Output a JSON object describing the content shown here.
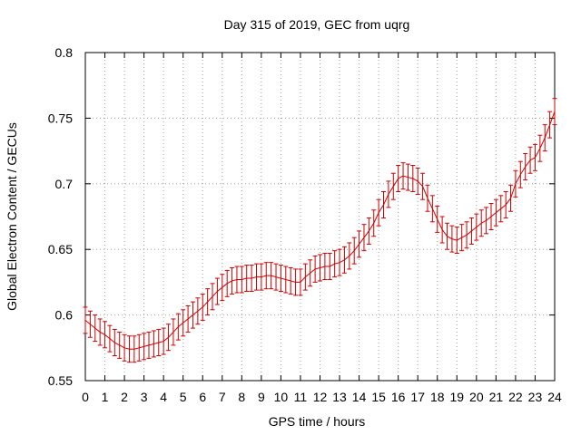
{
  "chart_data": {
    "type": "line",
    "title": "Day 315 of 2019, GEC from uqrg",
    "xlabel": "GPS time / hours",
    "ylabel": "Global Electron Content / GECUs",
    "xlim": [
      0,
      24
    ],
    "ylim": [
      0.55,
      0.8
    ],
    "xticks": [
      "0",
      "1",
      "2",
      "3",
      "4",
      "5",
      "6",
      "7",
      "8",
      "9",
      "10",
      "11",
      "12",
      "13",
      "14",
      "15",
      "16",
      "17",
      "18",
      "19",
      "20",
      "21",
      "22",
      "23",
      "24"
    ],
    "yticks": [
      "0.55",
      "0.6",
      "0.65",
      "0.7",
      "0.75",
      "0.8"
    ],
    "grid": true,
    "series_color": "#cc0000",
    "error": 0.01,
    "series": [
      {
        "name": "GEC",
        "x": [
          0.0,
          0.25,
          0.5,
          0.75,
          1.0,
          1.25,
          1.5,
          1.75,
          2.0,
          2.25,
          2.5,
          2.75,
          3.0,
          3.25,
          3.5,
          3.75,
          4.0,
          4.25,
          4.5,
          4.75,
          5.0,
          5.25,
          5.5,
          5.75,
          6.0,
          6.25,
          6.5,
          6.75,
          7.0,
          7.25,
          7.5,
          7.75,
          8.0,
          8.25,
          8.5,
          8.75,
          9.0,
          9.25,
          9.5,
          9.75,
          10.0,
          10.25,
          10.5,
          10.75,
          11.0,
          11.25,
          11.5,
          11.75,
          12.0,
          12.25,
          12.5,
          12.75,
          13.0,
          13.25,
          13.5,
          13.75,
          14.0,
          14.25,
          14.5,
          14.75,
          15.0,
          15.25,
          15.5,
          15.75,
          16.0,
          16.25,
          16.5,
          16.75,
          17.0,
          17.25,
          17.5,
          17.75,
          18.0,
          18.25,
          18.5,
          18.75,
          19.0,
          19.25,
          19.5,
          19.75,
          20.0,
          20.25,
          20.5,
          20.75,
          21.0,
          21.25,
          21.5,
          21.75,
          22.0,
          22.25,
          22.5,
          22.75,
          23.0,
          23.25,
          23.5,
          23.75,
          24.0
        ],
        "y": [
          0.596,
          0.593,
          0.59,
          0.587,
          0.585,
          0.582,
          0.579,
          0.577,
          0.575,
          0.574,
          0.574,
          0.575,
          0.576,
          0.577,
          0.578,
          0.579,
          0.58,
          0.583,
          0.587,
          0.591,
          0.594,
          0.597,
          0.6,
          0.603,
          0.606,
          0.61,
          0.614,
          0.618,
          0.621,
          0.624,
          0.626,
          0.627,
          0.627,
          0.628,
          0.628,
          0.629,
          0.629,
          0.63,
          0.63,
          0.629,
          0.628,
          0.627,
          0.626,
          0.625,
          0.625,
          0.629,
          0.632,
          0.635,
          0.636,
          0.637,
          0.637,
          0.639,
          0.64,
          0.642,
          0.645,
          0.649,
          0.654,
          0.659,
          0.664,
          0.67,
          0.678,
          0.684,
          0.692,
          0.698,
          0.704,
          0.706,
          0.705,
          0.704,
          0.702,
          0.698,
          0.689,
          0.681,
          0.673,
          0.665,
          0.66,
          0.658,
          0.657,
          0.659,
          0.661,
          0.664,
          0.667,
          0.67,
          0.672,
          0.675,
          0.678,
          0.681,
          0.684,
          0.689,
          0.7,
          0.707,
          0.713,
          0.718,
          0.72,
          0.727,
          0.735,
          0.745,
          0.755
        ]
      }
    ]
  }
}
